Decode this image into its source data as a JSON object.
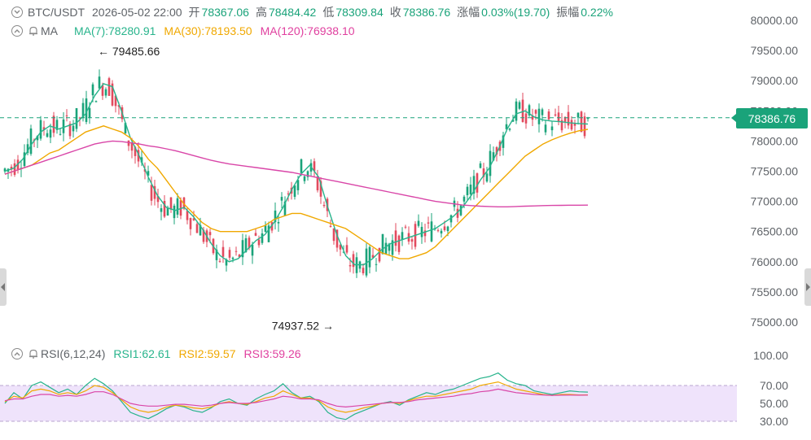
{
  "header": {
    "symbol": "BTC/USDT",
    "datetime": "2026-05-02 22:00",
    "open_label": "开",
    "open_value": "78367.06",
    "high_label": "高",
    "high_value": "78484.42",
    "low_label": "低",
    "low_value": "78309.84",
    "close_label": "收",
    "close_value": "78386.76",
    "change_label": "涨幅",
    "change_value": "0.03%(19.70)",
    "amplitude_label": "振幅",
    "amplitude_value": "0.22%"
  },
  "ma_legend": {
    "name": "MA",
    "ma7": "MA(7):78280.91",
    "ma30": "MA(30):78193.50",
    "ma120": "MA(120):76938.10"
  },
  "rsi_legend": {
    "name": "RSI(6,12,24)",
    "rsi1": "RSI1:62.61",
    "rsi2": "RSI2:59.57",
    "rsi3": "RSI3:59.26"
  },
  "current_price": "78386.76",
  "annotations": {
    "high": "79485.66",
    "low": "74937.52"
  },
  "colors": {
    "up": "#1aa37a",
    "down": "#e24a5e",
    "ma7": "#28b48c",
    "ma30": "#f0a800",
    "ma120": "#d946a8",
    "rsi1": "#28b48c",
    "rsi2": "#f0a800",
    "rsi3": "#d946a8",
    "rsi_band": "#efe3fb"
  },
  "chart_data": [
    {
      "type": "candlestick",
      "title": "BTC/USDT",
      "y_ticks": [
        "80000.00",
        "79500.00",
        "79000.00",
        "78500.00",
        "78000.00",
        "77500.00",
        "77000.00",
        "76500.00",
        "76000.00",
        "75500.00",
        "75000.00"
      ],
      "ylim": [
        74850,
        80100
      ],
      "grid": false,
      "series": [
        {
          "name": "MA(7)",
          "values": [
            77500,
            77550,
            77700,
            77950,
            78150,
            78250,
            78200,
            78250,
            78300,
            78450,
            78750,
            78950,
            78900,
            78500,
            78050,
            77750,
            77400,
            77100,
            76900,
            76850,
            76900,
            76750,
            76550,
            76300,
            76100,
            76000,
            76050,
            76200,
            76350,
            76450,
            76650,
            76900,
            77200,
            77450,
            77600,
            77400,
            76900,
            76450,
            76100,
            75950,
            75950,
            76050,
            76200,
            76300,
            76350,
            76400,
            76450,
            76500,
            76550,
            76650,
            76750,
            76900,
            77100,
            77350,
            77550,
            77850,
            78200,
            78450,
            78500,
            78400,
            78350,
            78330,
            78320,
            78300,
            78290,
            78281
          ]
        },
        {
          "name": "MA(30)",
          "values": [
            77450,
            77500,
            77550,
            77600,
            77700,
            77800,
            77850,
            77950,
            78050,
            78150,
            78200,
            78250,
            78200,
            78150,
            78050,
            77900,
            77700,
            77550,
            77350,
            77150,
            76950,
            76800,
            76650,
            76550,
            76500,
            76500,
            76500,
            76500,
            76550,
            76600,
            76700,
            76750,
            76800,
            76800,
            76750,
            76700,
            76650,
            76600,
            76550,
            76450,
            76350,
            76250,
            76150,
            76100,
            76050,
            76050,
            76100,
            76150,
            76250,
            76400,
            76550,
            76700,
            76850,
            77000,
            77150,
            77300,
            77450,
            77600,
            77750,
            77850,
            77950,
            78020,
            78080,
            78130,
            78170,
            78194
          ]
        },
        {
          "name": "MA(120)",
          "values": [
            77450,
            77500,
            77550,
            77600,
            77650,
            77700,
            77750,
            77800,
            77850,
            77900,
            77950,
            77980,
            78000,
            77990,
            77970,
            77950,
            77920,
            77900,
            77870,
            77840,
            77800,
            77760,
            77720,
            77680,
            77650,
            77620,
            77600,
            77580,
            77560,
            77540,
            77520,
            77500,
            77480,
            77450,
            77420,
            77390,
            77360,
            77330,
            77300,
            77270,
            77240,
            77210,
            77180,
            77150,
            77120,
            77090,
            77060,
            77030,
            77000,
            76980,
            76960,
            76940,
            76930,
            76920,
            76915,
            76910,
            76910,
            76915,
            76920,
            76925,
            76930,
            76932,
            76934,
            76936,
            76937,
            76938
          ]
        }
      ]
    },
    {
      "type": "line",
      "title": "RSI(6,12,24)",
      "y_ticks": [
        "100.00",
        "70.00",
        "50.00",
        "30.00"
      ],
      "ylim": [
        25,
        105
      ],
      "series": [
        {
          "name": "RSI1",
          "values": [
            50,
            62,
            55,
            70,
            74,
            68,
            62,
            66,
            60,
            70,
            78,
            72,
            64,
            52,
            40,
            36,
            33,
            38,
            44,
            48,
            46,
            42,
            40,
            45,
            52,
            55,
            50,
            48,
            55,
            60,
            64,
            72,
            62,
            56,
            58,
            52,
            40,
            34,
            32,
            38,
            42,
            46,
            50,
            52,
            48,
            54,
            58,
            62,
            60,
            64,
            66,
            70,
            74,
            78,
            80,
            84,
            76,
            72,
            70,
            64,
            62,
            60,
            62,
            64,
            63,
            62.61
          ]
        },
        {
          "name": "RSI2",
          "values": [
            52,
            58,
            56,
            64,
            66,
            64,
            60,
            62,
            60,
            64,
            70,
            68,
            62,
            54,
            46,
            42,
            40,
            42,
            46,
            48,
            47,
            45,
            44,
            46,
            50,
            52,
            50,
            49,
            52,
            56,
            58,
            64,
            60,
            56,
            56,
            53,
            46,
            42,
            40,
            42,
            45,
            47,
            50,
            51,
            50,
            53,
            56,
            58,
            58,
            60,
            62,
            64,
            66,
            70,
            72,
            74,
            70,
            66,
            64,
            62,
            60,
            59,
            60,
            60,
            59.5,
            59.57
          ]
        },
        {
          "name": "RSI3",
          "values": [
            53,
            55,
            55,
            58,
            60,
            60,
            58,
            59,
            58,
            60,
            63,
            63,
            60,
            55,
            50,
            48,
            47,
            47,
            48,
            49,
            49,
            48,
            47,
            48,
            50,
            51,
            50,
            50,
            51,
            53,
            55,
            58,
            57,
            55,
            55,
            54,
            50,
            47,
            46,
            47,
            48,
            49,
            50,
            51,
            51,
            52,
            54,
            55,
            56,
            57,
            58,
            60,
            61,
            63,
            64,
            66,
            64,
            62,
            61,
            60,
            59.5,
            59,
            59.2,
            59.3,
            59.2,
            59.26
          ]
        }
      ]
    }
  ]
}
